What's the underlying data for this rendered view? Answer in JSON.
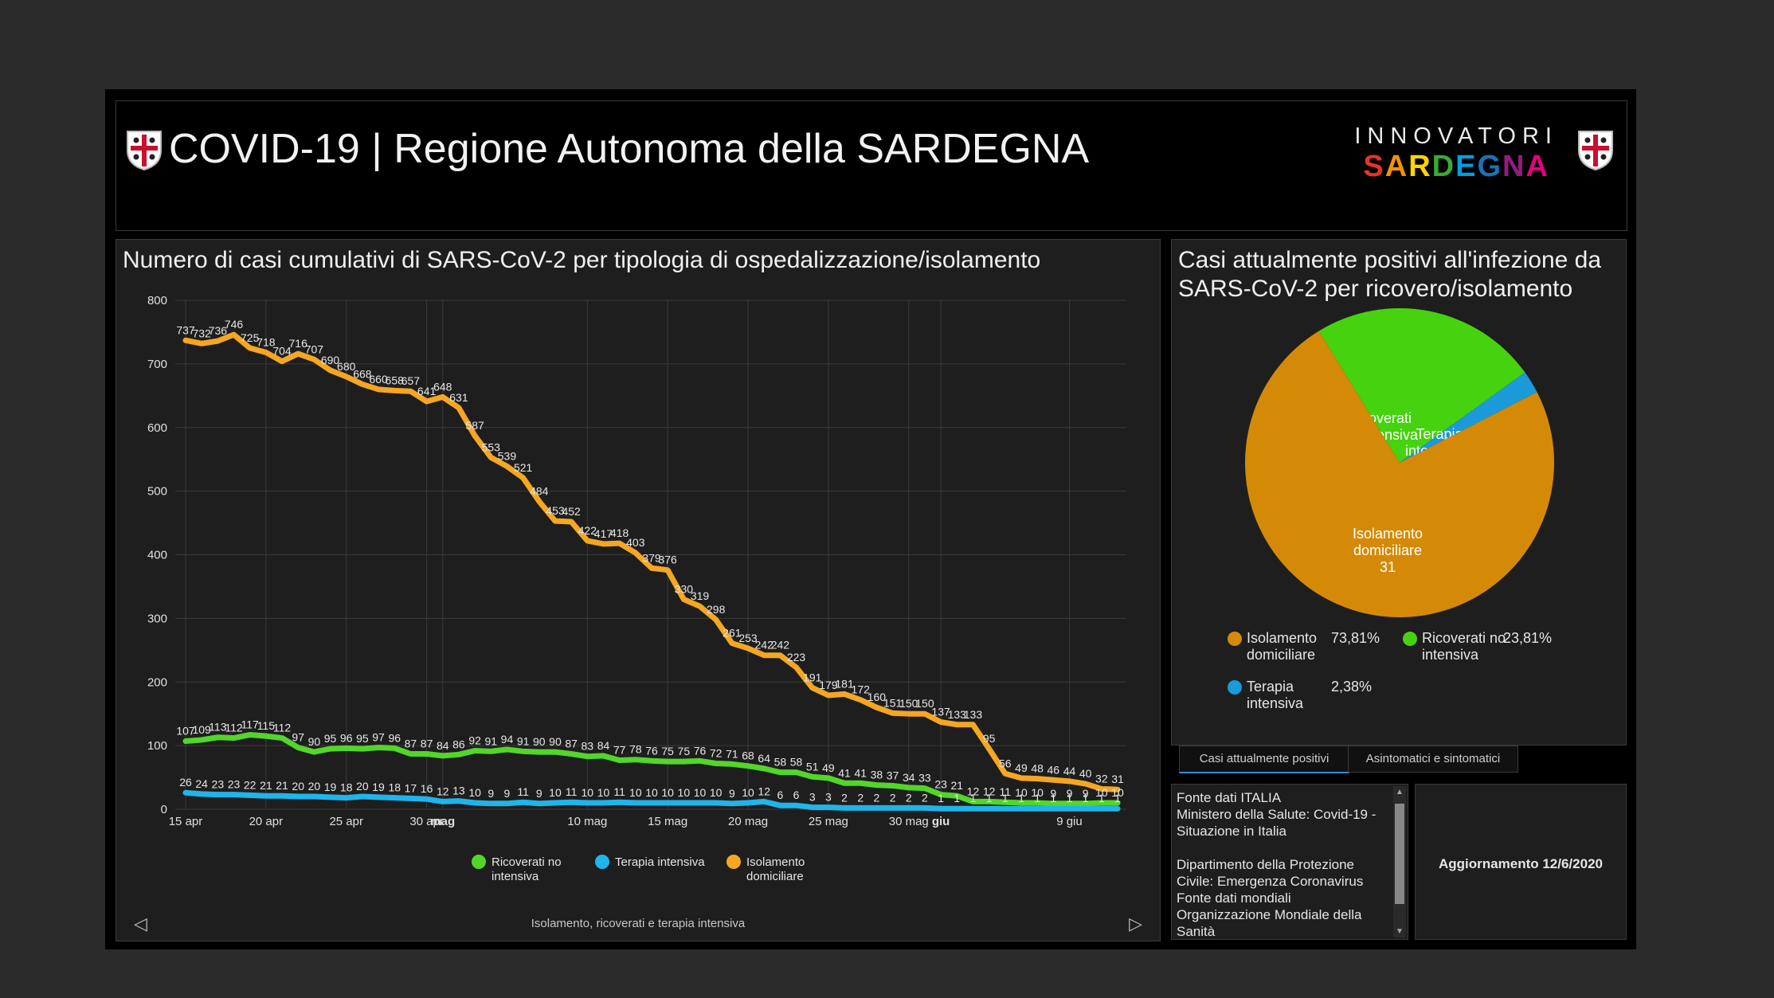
{
  "header": {
    "title": "COVID-19 | Regione Autonoma della SARDEGNA",
    "brand_top": "INNOVATORI",
    "brand_bottom": "SARDEGNA"
  },
  "line_panel": {
    "title": "Numero di casi cumulativi di SARS-CoV-2 per tipologia di ospedalizzazione/isolamento",
    "footer": "Isolamento, ricoverati e terapia intensiva",
    "legend": [
      "Ricoverati no intensiva",
      "Terapia intensiva",
      "Isolamento domiciliare"
    ]
  },
  "pie_panel": {
    "title": "Casi attualmente positivi all'infezione da SARS-CoV-2 per ricovero/isolamento",
    "tabs": [
      "Casi attualmente positivi",
      "Asintomatici e sintomatici"
    ]
  },
  "source": {
    "text": "Fonte dati ITALIA\nMinistero della Salute: Covid-19 - Situazione in Italia\n\nDipartimento della Protezione Civile: Emergenza Coronavirus\nFonte dati mondiali\nOrganizzazione Mondiale della Sanità"
  },
  "update": {
    "text": "Aggiornamento 12/6/2020"
  },
  "chart_data": [
    {
      "type": "line",
      "title": "Numero di casi cumulativi di SARS-CoV-2 per tipologia di ospedalizzazione/isolamento",
      "xlabel": "",
      "ylabel": "",
      "ylim": [
        0,
        800
      ],
      "yticks": [
        0,
        100,
        200,
        300,
        400,
        500,
        600,
        700,
        800
      ],
      "x_start": "2020-04-14",
      "x_ticks": [
        "15 apr",
        "20 apr",
        "25 apr",
        "30 apr",
        "mag",
        "10 mag",
        "15 mag",
        "20 mag",
        "25 mag",
        "30 mag",
        "giu",
        "9 giu"
      ],
      "x_tick_days": [
        1,
        6,
        11,
        16,
        17,
        26,
        31,
        36,
        41,
        46,
        48,
        56
      ],
      "grid": true,
      "legend_position": "bottom",
      "series": [
        {
          "name": "Ricoverati no intensiva",
          "color": "#52d62a",
          "values": [
            107,
            109,
            113,
            112,
            117,
            115,
            112,
            97,
            90,
            95,
            96,
            95,
            97,
            96,
            87,
            87,
            84,
            86,
            92,
            91,
            94,
            91,
            90,
            90,
            87,
            83,
            84,
            77,
            78,
            76,
            75,
            75,
            76,
            72,
            71,
            68,
            64,
            58,
            58,
            51,
            49,
            41,
            41,
            38,
            37,
            34,
            33,
            23,
            21,
            12,
            12,
            11,
            10,
            10,
            9,
            9,
            9,
            10,
            10
          ]
        },
        {
          "name": "Terapia intensiva",
          "color": "#1fb5ea",
          "values": [
            26,
            24,
            23,
            23,
            22,
            21,
            21,
            20,
            20,
            19,
            18,
            20,
            19,
            18,
            17,
            16,
            12,
            13,
            10,
            9,
            9,
            11,
            9,
            10,
            11,
            10,
            10,
            11,
            10,
            10,
            10,
            10,
            10,
            10,
            9,
            10,
            12,
            6,
            6,
            3,
            3,
            2,
            2,
            2,
            2,
            2,
            2,
            1,
            1,
            1,
            1,
            1,
            1,
            1,
            1,
            1,
            1,
            1,
            1
          ]
        },
        {
          "name": "Isolamento domiciliare",
          "color": "#f5a623",
          "values": [
            737,
            732,
            736,
            746,
            725,
            718,
            704,
            716,
            707,
            690,
            680,
            668,
            660,
            658,
            657,
            641,
            648,
            631,
            587,
            553,
            539,
            521,
            484,
            453,
            452,
            422,
            417,
            418,
            403,
            379,
            376,
            330,
            319,
            298,
            261,
            253,
            242,
            242,
            223,
            191,
            179,
            181,
            172,
            160,
            151,
            150,
            150,
            137,
            133,
            133,
            95,
            56,
            49,
            48,
            46,
            44,
            40,
            32,
            31
          ]
        }
      ]
    },
    {
      "type": "pie",
      "title": "Casi attualmente positivi all'infezione da SARS-CoV-2 per ricovero/isolamento",
      "slices": [
        {
          "label": "Ricoverati no intensiva",
          "label_lines": [
            "Ricoverati",
            "no intensiva",
            "10"
          ],
          "value": 10,
          "percent": "23,81%",
          "color": "#46d20f"
        },
        {
          "label": "Terapia intensiva",
          "label_lines": [
            "Terapia",
            "intensiva 1"
          ],
          "value": 1,
          "percent": "2,38%",
          "color": "#1a9ad8"
        },
        {
          "label": "Isolamento domiciliare",
          "label_lines": [
            "Isolamento",
            "domiciliare",
            "31"
          ],
          "value": 31,
          "percent": "73,81%",
          "color": "#d48a06"
        }
      ],
      "legend": [
        {
          "label": "Isolamento domiciliare",
          "percent": "73,81%",
          "color": "#d48a06"
        },
        {
          "label": "Ricoverati no intensiva",
          "percent": "23,81%",
          "color": "#46d20f"
        },
        {
          "label": "Terapia intensiva",
          "percent": "2,38%",
          "color": "#1a9ad8"
        }
      ]
    }
  ]
}
